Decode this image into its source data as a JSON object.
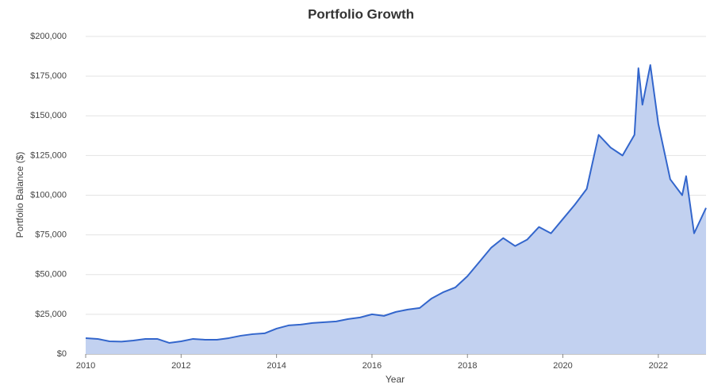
{
  "chart_data": {
    "type": "area",
    "title": "Portfolio Growth",
    "x_label": "Year",
    "y_label": "Portfolio Balance ($)",
    "x": [
      2010,
      2010.25,
      2010.5,
      2010.75,
      2011,
      2011.25,
      2011.5,
      2011.75,
      2012,
      2012.25,
      2012.5,
      2012.75,
      2013,
      2013.25,
      2013.5,
      2013.75,
      2014,
      2014.25,
      2014.5,
      2014.75,
      2015,
      2015.25,
      2015.5,
      2015.75,
      2016,
      2016.25,
      2016.5,
      2016.75,
      2017,
      2017.25,
      2017.5,
      2017.75,
      2018,
      2018.25,
      2018.5,
      2018.75,
      2019,
      2019.25,
      2019.5,
      2019.75,
      2020,
      2020.25,
      2020.5,
      2020.75,
      2021,
      2021.25,
      2021.5,
      2021.583,
      2021.667,
      2021.833,
      2022,
      2022.25,
      2022.5,
      2022.583,
      2022.75,
      2023
    ],
    "series": [
      {
        "name": "Portfolio Balance",
        "color": "#3366cc",
        "fill": "#c2d1f0",
        "values": [
          10000,
          9500,
          8000,
          7800,
          8500,
          9500,
          9500,
          7000,
          8000,
          9500,
          9000,
          9000,
          10000,
          11500,
          12500,
          13000,
          16000,
          18000,
          18500,
          19500,
          20000,
          20500,
          22000,
          23000,
          25000,
          24000,
          26500,
          28000,
          29000,
          35000,
          39000,
          42000,
          49000,
          58000,
          67000,
          73000,
          68000,
          72000,
          80000,
          76000,
          85000,
          94000,
          104000,
          138000,
          130000,
          125000,
          138000,
          180000,
          157000,
          182000,
          145000,
          110000,
          100000,
          112000,
          76000,
          92000
        ]
      }
    ],
    "xlim": [
      2010,
      2023
    ],
    "xticks": [
      2010,
      2012,
      2014,
      2016,
      2018,
      2020,
      2022
    ],
    "ylim": [
      0,
      200000
    ],
    "yticks": [
      {
        "value": 0,
        "label": "$0"
      },
      {
        "value": 25000,
        "label": "$25,000"
      },
      {
        "value": 50000,
        "label": "$50,000"
      },
      {
        "value": 75000,
        "label": "$75,000"
      },
      {
        "value": 100000,
        "label": "$100,000"
      },
      {
        "value": 125000,
        "label": "$125,000"
      },
      {
        "value": 150000,
        "label": "$150,000"
      },
      {
        "value": 175000,
        "label": "$175,000"
      },
      {
        "value": 200000,
        "label": "$200,000"
      }
    ],
    "grid": true
  }
}
